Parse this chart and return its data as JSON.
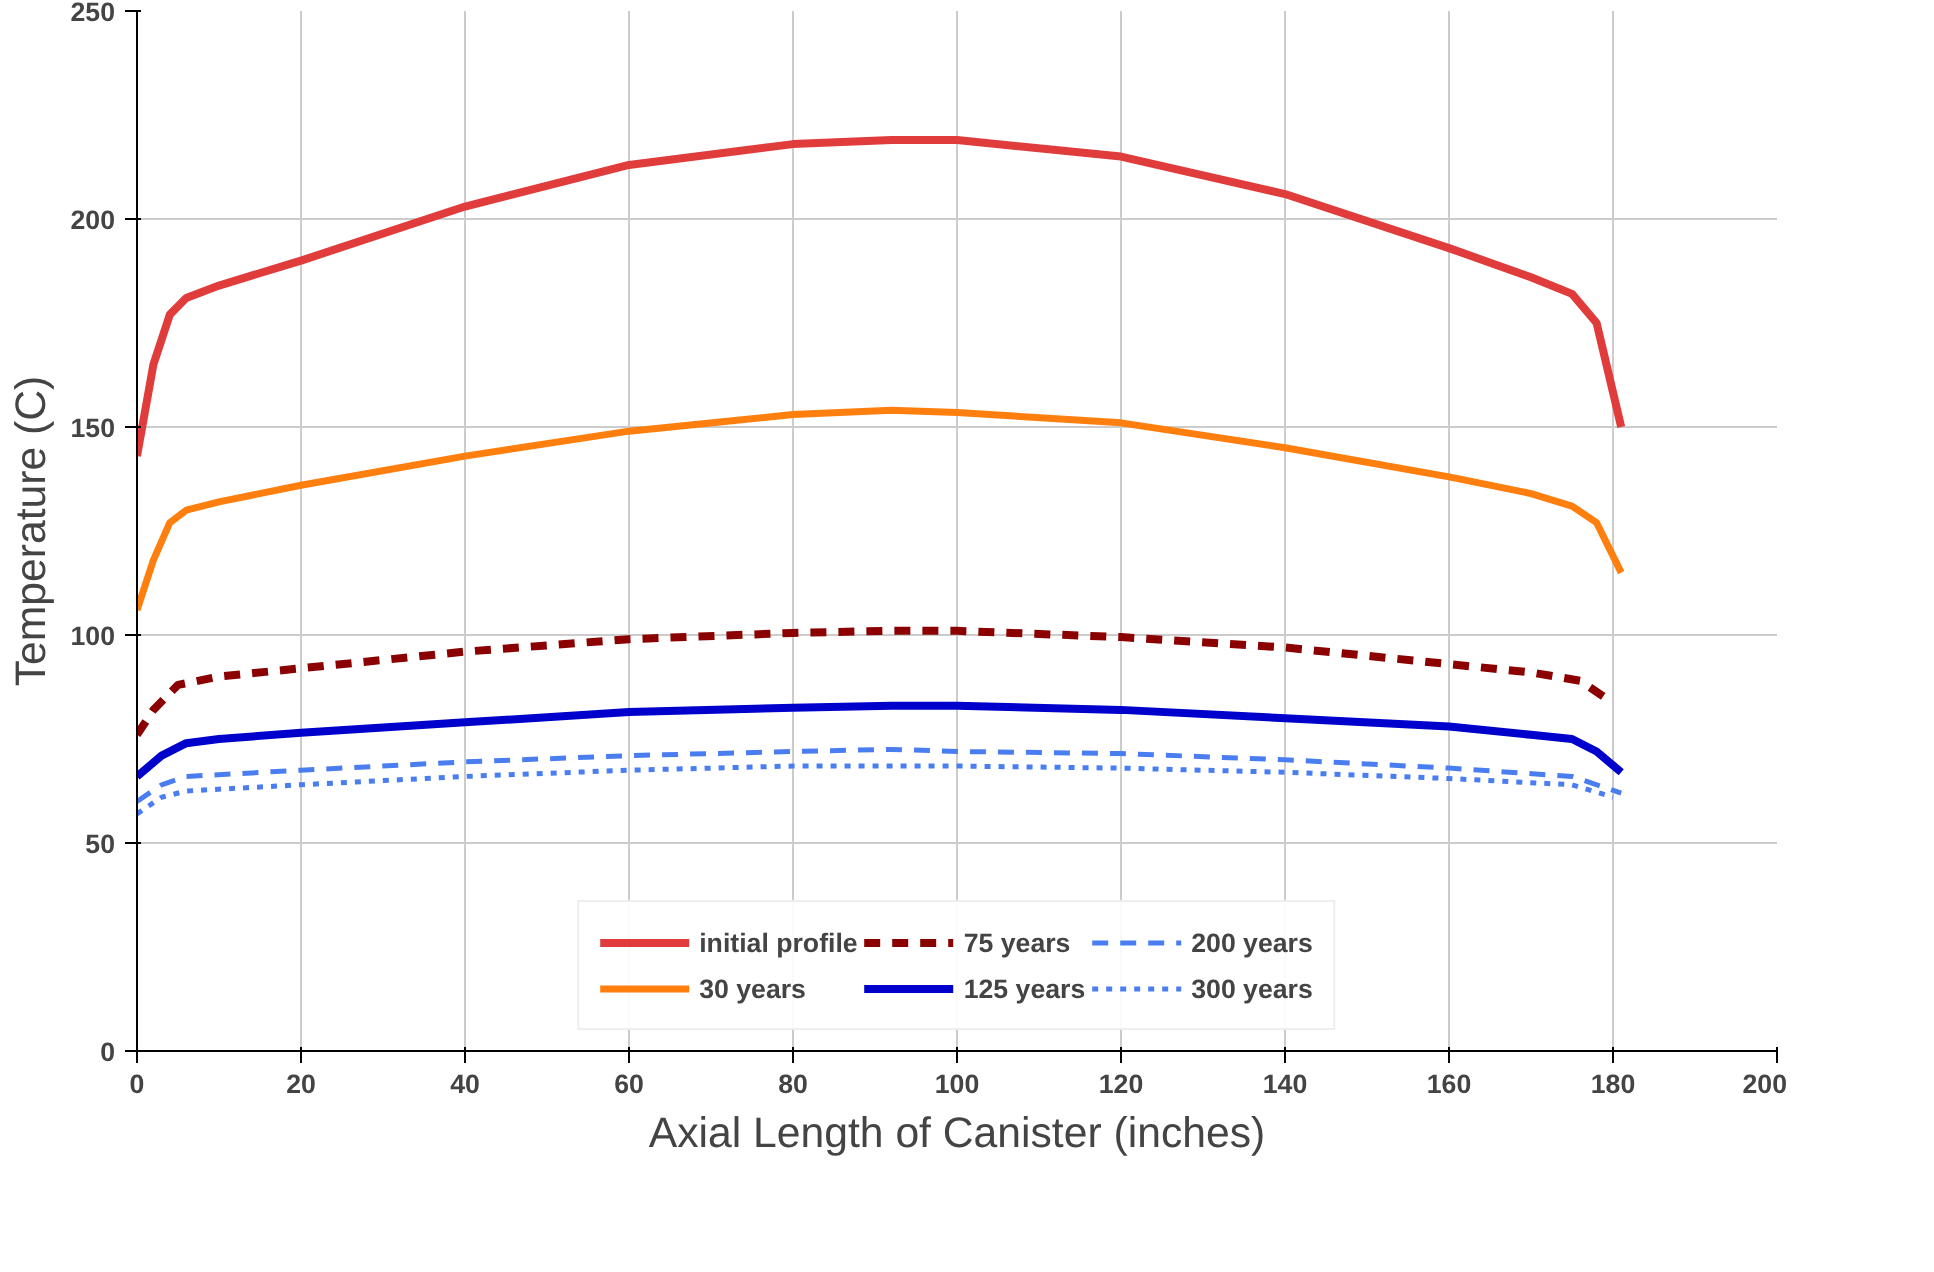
{
  "chart_data": {
    "type": "line",
    "xlabel": "Axial Length of Canister (inches)",
    "ylabel": "Temperature (C)",
    "xlim": [
      0,
      200
    ],
    "ylim": [
      0,
      250
    ],
    "xticks": [
      0,
      20,
      40,
      60,
      80,
      100,
      120,
      140,
      160,
      180,
      200
    ],
    "yticks": [
      0,
      50,
      100,
      150,
      200,
      250
    ],
    "grid": true,
    "legend": "bottom",
    "series": [
      {
        "name": "initial profile",
        "color": "#e03c3c",
        "line_style": "solid",
        "x": [
          0,
          2,
          4,
          6,
          10,
          20,
          40,
          60,
          80,
          92,
          100,
          120,
          140,
          160,
          170,
          175,
          178,
          181
        ],
        "values": [
          143,
          165,
          177,
          181,
          184,
          190,
          203,
          213,
          218,
          219,
          219,
          215,
          206,
          193,
          186,
          182,
          175,
          150
        ]
      },
      {
        "name": "30 years",
        "color": "#ff7f0e",
        "line_style": "solid",
        "x": [
          0,
          2,
          4,
          6,
          10,
          20,
          40,
          60,
          80,
          92,
          100,
          120,
          140,
          160,
          170,
          175,
          178,
          181
        ],
        "values": [
          106,
          118,
          127,
          130,
          132,
          136,
          143,
          149,
          153,
          154,
          153.5,
          151,
          145,
          138,
          134,
          131,
          127,
          115
        ]
      },
      {
        "name": "75 years",
        "color": "#8b0000",
        "line_style": "dashed",
        "x": [
          0,
          2,
          5,
          10,
          20,
          40,
          60,
          80,
          92,
          100,
          120,
          140,
          160,
          170,
          176,
          179
        ],
        "values": [
          76,
          82,
          88,
          90,
          92,
          96,
          99,
          100.5,
          101,
          101,
          99.5,
          97,
          93,
          91,
          89,
          85
        ]
      },
      {
        "name": "125 years",
        "color": "#0000cc",
        "line_style": "solid",
        "x": [
          0,
          3,
          6,
          10,
          20,
          40,
          60,
          80,
          92,
          100,
          120,
          140,
          160,
          170,
          175,
          178,
          181
        ],
        "values": [
          66,
          71,
          74,
          75,
          76.5,
          79,
          81.5,
          82.5,
          83,
          83,
          82,
          80,
          78,
          76,
          75,
          72,
          67
        ]
      },
      {
        "name": "200 years",
        "color": "#4a7ef0",
        "line_style": "dashed",
        "x": [
          0,
          3,
          6,
          20,
          40,
          60,
          80,
          92,
          100,
          120,
          140,
          160,
          175,
          181
        ],
        "values": [
          60,
          64,
          66,
          67.5,
          69.5,
          71,
          72,
          72.5,
          72,
          71.5,
          70,
          68,
          66,
          62
        ]
      },
      {
        "name": "300 years",
        "color": "#4a7ef0",
        "line_style": "dotted",
        "x": [
          0,
          3,
          6,
          20,
          40,
          60,
          80,
          92,
          100,
          120,
          140,
          160,
          175,
          180
        ],
        "values": [
          57,
          61,
          62.5,
          64,
          66,
          67.5,
          68.5,
          68.5,
          68.5,
          68,
          67,
          65.5,
          64,
          61
        ]
      }
    ]
  }
}
